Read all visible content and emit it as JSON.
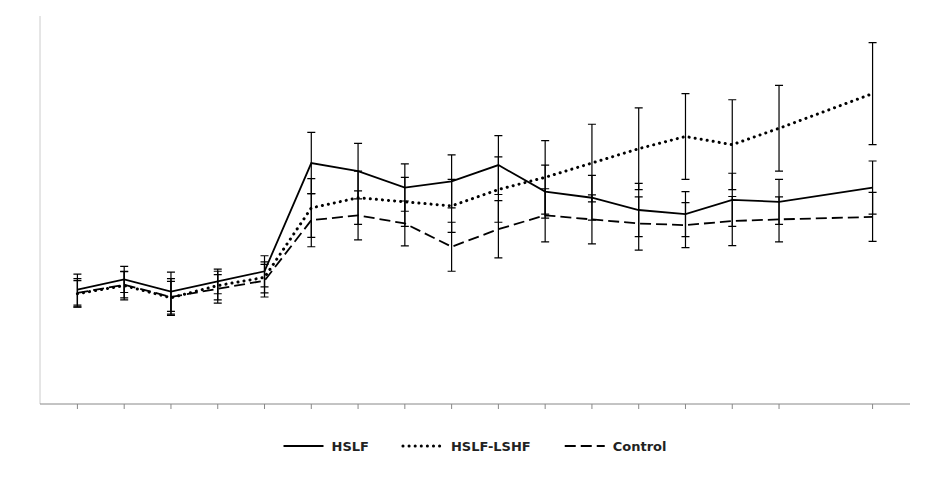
{
  "chart_data": {
    "type": "line",
    "x": [
      -4,
      -3,
      -2,
      -1,
      0,
      1,
      2,
      3,
      4,
      5,
      6,
      7,
      8,
      9,
      10,
      11,
      13
    ],
    "series": [
      {
        "name": "HSLF",
        "color": "black",
        "line_style": "solid",
        "values": [
          2.8,
          3.05,
          2.75,
          3.0,
          3.25,
          5.9,
          5.7,
          5.3,
          5.45,
          5.85,
          5.2,
          5.05,
          4.75,
          4.65,
          5.0,
          4.95,
          5.3
        ],
        "errors": [
          0.38,
          0.32,
          0.48,
          0.3,
          0.38,
          0.75,
          0.68,
          0.58,
          0.65,
          0.72,
          0.65,
          0.55,
          0.65,
          0.55,
          0.65,
          0.55,
          0.65
        ]
      },
      {
        "name": "HSLF-LSHF",
        "color": "black",
        "line_style": "dotted",
        "values": [
          2.7,
          2.9,
          2.6,
          2.9,
          3.1,
          4.8,
          5.05,
          4.95,
          4.85,
          5.25,
          5.55,
          5.9,
          6.25,
          6.55,
          6.35,
          6.75,
          7.6
        ],
        "errors": [
          0.32,
          0.35,
          0.4,
          0.35,
          0.38,
          0.72,
          0.65,
          0.6,
          0.65,
          0.8,
          0.9,
          0.95,
          1.0,
          1.05,
          1.1,
          1.05,
          1.25
        ]
      },
      {
        "name": "Control",
        "color": "black",
        "line_style": "dashed",
        "values": [
          2.72,
          2.92,
          2.62,
          2.82,
          3.02,
          4.5,
          4.62,
          4.42,
          3.85,
          4.28,
          4.62,
          4.52,
          4.42,
          4.38,
          4.48,
          4.52,
          4.58
        ],
        "errors": [
          0.35,
          0.32,
          0.45,
          0.35,
          0.4,
          0.65,
          0.6,
          0.55,
          0.6,
          0.7,
          0.65,
          0.6,
          0.65,
          0.55,
          0.6,
          0.55,
          0.6
        ]
      }
    ],
    "xlim": [
      -4.8,
      13.8
    ],
    "xticks": [
      -4,
      -3,
      -2,
      -1,
      0,
      1,
      2,
      3,
      4,
      5,
      6,
      7,
      8,
      9,
      10,
      11,
      13
    ],
    "ylim": [
      0,
      9.5
    ],
    "tick_labels": false,
    "grid": false,
    "legend": "bottom"
  }
}
